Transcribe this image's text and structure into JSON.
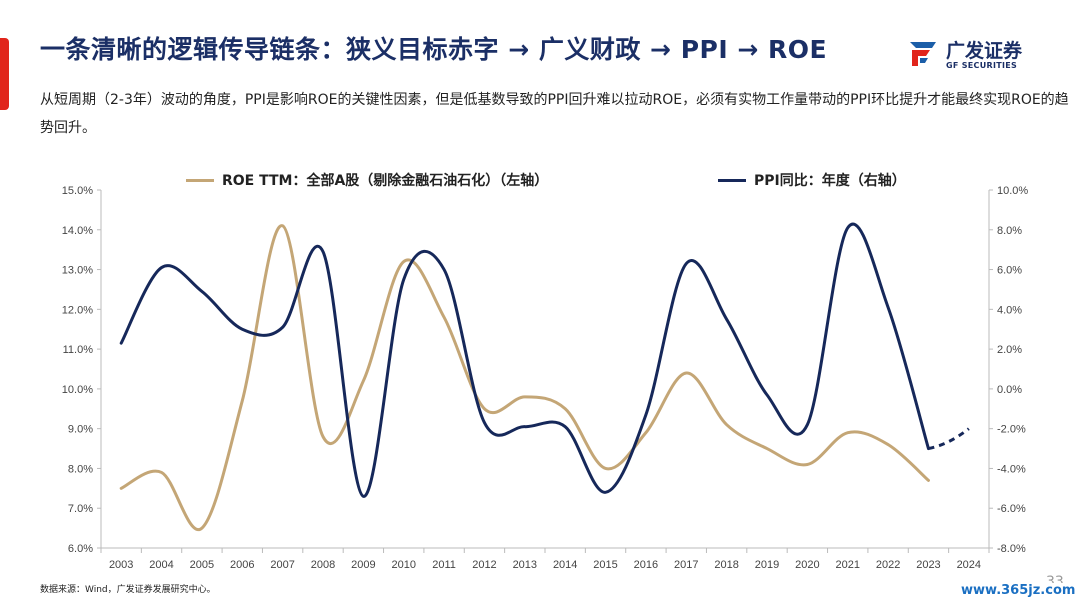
{
  "header": {
    "title": "一条清晰的逻辑传导链条：狭义目标赤字 → 广义财政 → PPI → ROE",
    "subtitle": "从短周期（2-3年）波动的角度，PPI是影响ROE的关键性因素，但是低基数导致的PPI回升难以拉动ROE，必须有实物工作量带动的PPI环比提升才能最终实现ROE的趋势回升。",
    "accent_color": "#e1251b",
    "title_color": "#1b2f66"
  },
  "logo": {
    "name_cn": "广发证券",
    "name_en": "GF SECURITIES",
    "icon": "gf-logo-icon"
  },
  "footer": {
    "source": "数据来源：Wind，广发证券发展研究中心。",
    "page_number": "33",
    "watermark": "www.365jz.com"
  },
  "chart_data": {
    "type": "line",
    "categories": [
      "2003",
      "2004",
      "2005",
      "2006",
      "2007",
      "2008",
      "2009",
      "2010",
      "2011",
      "2012",
      "2013",
      "2014",
      "2015",
      "2016",
      "2017",
      "2018",
      "2019",
      "2020",
      "2021",
      "2022",
      "2023",
      "2024"
    ],
    "series": [
      {
        "name": "ROE TTM：全部A股（剔除金融石油石化）（左轴）",
        "axis": "left",
        "color": "#c4a676",
        "values": [
          7.5,
          7.9,
          6.5,
          9.7,
          14.1,
          8.8,
          10.2,
          13.2,
          11.8,
          9.5,
          9.8,
          9.5,
          8.0,
          8.9,
          10.4,
          9.1,
          8.5,
          8.1,
          8.9,
          8.6,
          7.7,
          null
        ]
      },
      {
        "name": "PPI同比：年度（右轴）",
        "axis": "right",
        "color": "#16285a",
        "values": [
          2.3,
          6.1,
          4.9,
          3.0,
          3.1,
          6.9,
          -5.4,
          5.5,
          6.0,
          -1.7,
          -1.9,
          -1.9,
          -5.2,
          -1.3,
          6.3,
          3.5,
          -0.3,
          -1.8,
          8.1,
          4.1,
          -3.0,
          null
        ],
        "projection": {
          "from_category": "2023",
          "values": [
            -3.0,
            -2.0
          ]
        }
      }
    ],
    "left_axis": {
      "min": 6.0,
      "max": 15.0,
      "step": 1.0,
      "ticks": [
        "6.0%",
        "7.0%",
        "8.0%",
        "9.0%",
        "10.0%",
        "11.0%",
        "12.0%",
        "13.0%",
        "14.0%",
        "15.0%"
      ]
    },
    "right_axis": {
      "min": -8.0,
      "max": 10.0,
      "step": 2.0,
      "ticks": [
        "-8.0%",
        "-6.0%",
        "-4.0%",
        "-2.0%",
        "0.0%",
        "2.0%",
        "4.0%",
        "6.0%",
        "8.0%",
        "10.0%"
      ]
    },
    "grid": false,
    "legend_position": "top"
  }
}
